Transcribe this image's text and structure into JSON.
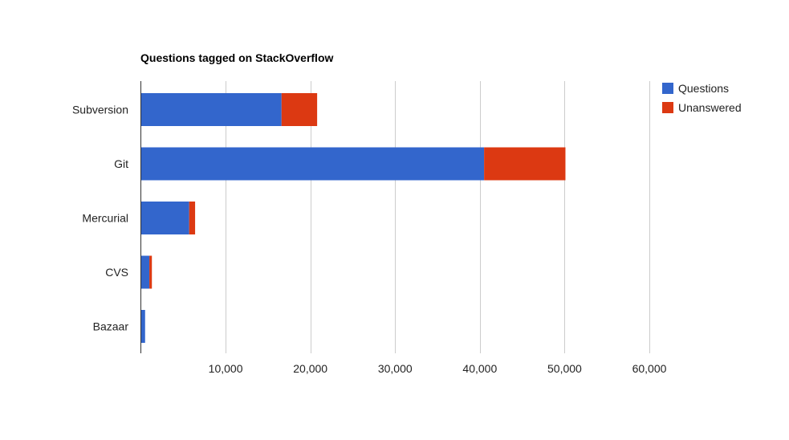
{
  "chart_data": {
    "type": "bar",
    "orientation": "horizontal",
    "stacked": true,
    "title": "Questions tagged on StackOverflow",
    "xlabel": "",
    "ylabel": "",
    "categories": [
      "Subversion",
      "Git",
      "Mercurial",
      "CVS",
      "Bazaar"
    ],
    "series": [
      {
        "name": "Questions",
        "color": "#3366cc",
        "values": [
          16600,
          40500,
          5700,
          1000,
          500
        ]
      },
      {
        "name": "Unanswered",
        "color": "#dc3912",
        "values": [
          4200,
          9600,
          700,
          300,
          0
        ]
      }
    ],
    "xlim": [
      0,
      60000
    ],
    "x_ticks": [
      10000,
      20000,
      30000,
      40000,
      50000,
      60000
    ],
    "x_tick_labels": [
      "10,000",
      "20,000",
      "30,000",
      "40,000",
      "50,000",
      "60,000"
    ],
    "grid": true,
    "legend_position": "right"
  }
}
